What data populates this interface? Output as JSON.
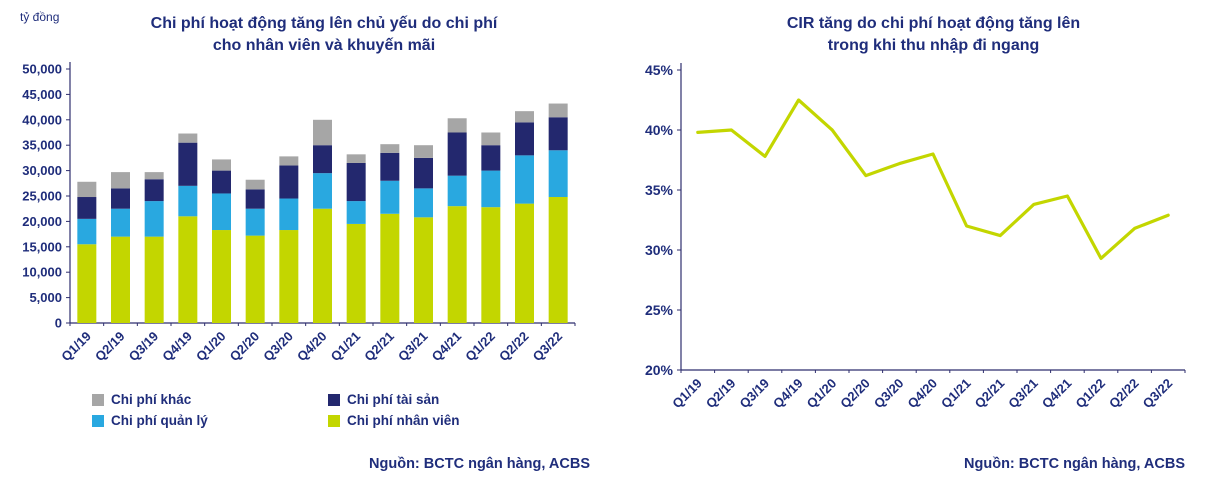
{
  "colors": {
    "title_text": "#1F2D7B",
    "axis_line": "#2E2E6E",
    "axis_text": "#1F2D7B",
    "source_text": "#1F2D7B"
  },
  "chart_data": [
    {
      "type": "bar",
      "subtype": "stacked",
      "title": "Chi phí hoạt động tăng lên chủ yếu do chi phí cho nhân viên và khuyến mãi",
      "title_lines": [
        "Chi phí hoạt động tăng lên chủ yếu do chi phí",
        "cho nhân viên và khuyến mãi"
      ],
      "ylabel": "tỷ đồng",
      "xlabel": "",
      "ylim": [
        0,
        50000
      ],
      "ytick_step": 5000,
      "grid": false,
      "legend_position": "bottom",
      "categories": [
        "Q1/19",
        "Q2/19",
        "Q3/19",
        "Q4/19",
        "Q1/20",
        "Q2/20",
        "Q3/20",
        "Q4/20",
        "Q1/21",
        "Q2/21",
        "Q3/21",
        "Q4/21",
        "Q1/22",
        "Q2/22",
        "Q3/22"
      ],
      "series": [
        {
          "name": "Chi phí nhân viên",
          "color": "#C3D600",
          "values": [
            15500,
            17000,
            17000,
            21000,
            18300,
            17200,
            18300,
            22500,
            19500,
            21500,
            20800,
            23000,
            22800,
            23500,
            24800
          ]
        },
        {
          "name": "Chi phí quản lý",
          "color": "#29A8E0",
          "values": [
            5000,
            5500,
            7000,
            6000,
            7200,
            5300,
            6200,
            7000,
            4500,
            6500,
            5700,
            6000,
            7200,
            9500,
            9200
          ]
        },
        {
          "name": "Chi phí tài sản",
          "color": "#23286E",
          "values": [
            4300,
            4000,
            4300,
            8500,
            4500,
            3800,
            6500,
            5500,
            7500,
            5500,
            6000,
            8500,
            5000,
            6500,
            6500
          ]
        },
        {
          "name": "Chi phí khác",
          "color": "#A6A6A6",
          "values": [
            3000,
            3200,
            1400,
            1800,
            2200,
            1900,
            1800,
            5000,
            1700,
            1700,
            2500,
            2800,
            2500,
            2200,
            2700
          ]
        }
      ],
      "source": "Nguồn: BCTC ngân hàng, ACBS"
    },
    {
      "type": "line",
      "title": "CIR tăng do chi phí hoạt động tăng lên trong khi thu nhập đi ngang",
      "title_lines": [
        "CIR tăng do chi phí hoạt động tăng lên",
        "trong khi thu nhập đi ngang"
      ],
      "ylabel": "",
      "xlabel": "",
      "ylim": [
        20,
        45
      ],
      "ytick_step": 5,
      "ytick_suffix": "%",
      "grid": false,
      "line_color": "#C3D600",
      "categories": [
        "Q1/19",
        "Q2/19",
        "Q3/19",
        "Q4/19",
        "Q1/20",
        "Q2/20",
        "Q3/20",
        "Q4/20",
        "Q1/21",
        "Q2/21",
        "Q3/21",
        "Q4/21",
        "Q1/22",
        "Q2/22",
        "Q3/22"
      ],
      "values": [
        39.8,
        40.0,
        37.8,
        42.5,
        40.0,
        36.2,
        37.2,
        38.0,
        32.0,
        31.2,
        33.8,
        34.5,
        29.3,
        31.8,
        32.9
      ],
      "source": "Nguồn: BCTC ngân hàng, ACBS"
    }
  ]
}
